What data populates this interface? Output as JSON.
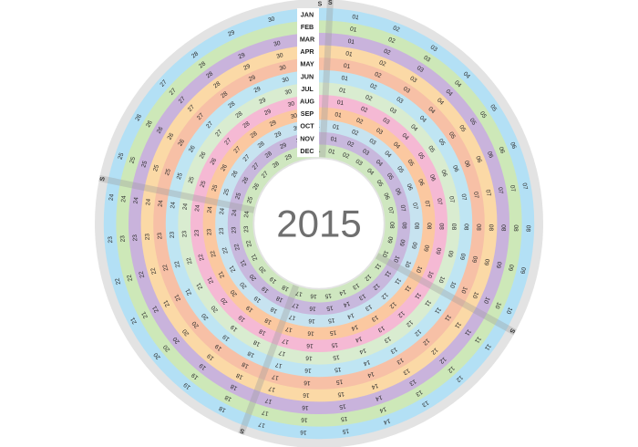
{
  "calendar": {
    "year": "2015",
    "sunday_marker": "S",
    "months": [
      {
        "name": "JAN",
        "days": 31,
        "color": "#b3e0f5"
      },
      {
        "name": "FEB",
        "days": 28,
        "color": "#cde8b8"
      },
      {
        "name": "MAR",
        "days": 31,
        "color": "#c9b3dc"
      },
      {
        "name": "APR",
        "days": 30,
        "color": "#fbd9a6"
      },
      {
        "name": "MAY",
        "days": 31,
        "color": "#f7c0a6"
      },
      {
        "name": "JUN",
        "days": 30,
        "color": "#bfe5f3"
      },
      {
        "name": "JUL",
        "days": 31,
        "color": "#d9ecd0"
      },
      {
        "name": "AUG",
        "days": 31,
        "color": "#f5b9d4"
      },
      {
        "name": "SEP",
        "days": 30,
        "color": "#fbc8a0"
      },
      {
        "name": "OCT",
        "days": 31,
        "color": "#c7e3f0"
      },
      {
        "name": "NOV",
        "days": 30,
        "color": "#c8b8dd"
      },
      {
        "name": "DEC",
        "days": 31,
        "color": "#cfe7c0"
      }
    ],
    "outer_ring_color": "#e3e3e3",
    "label_bg_color": "#ffffff"
  }
}
